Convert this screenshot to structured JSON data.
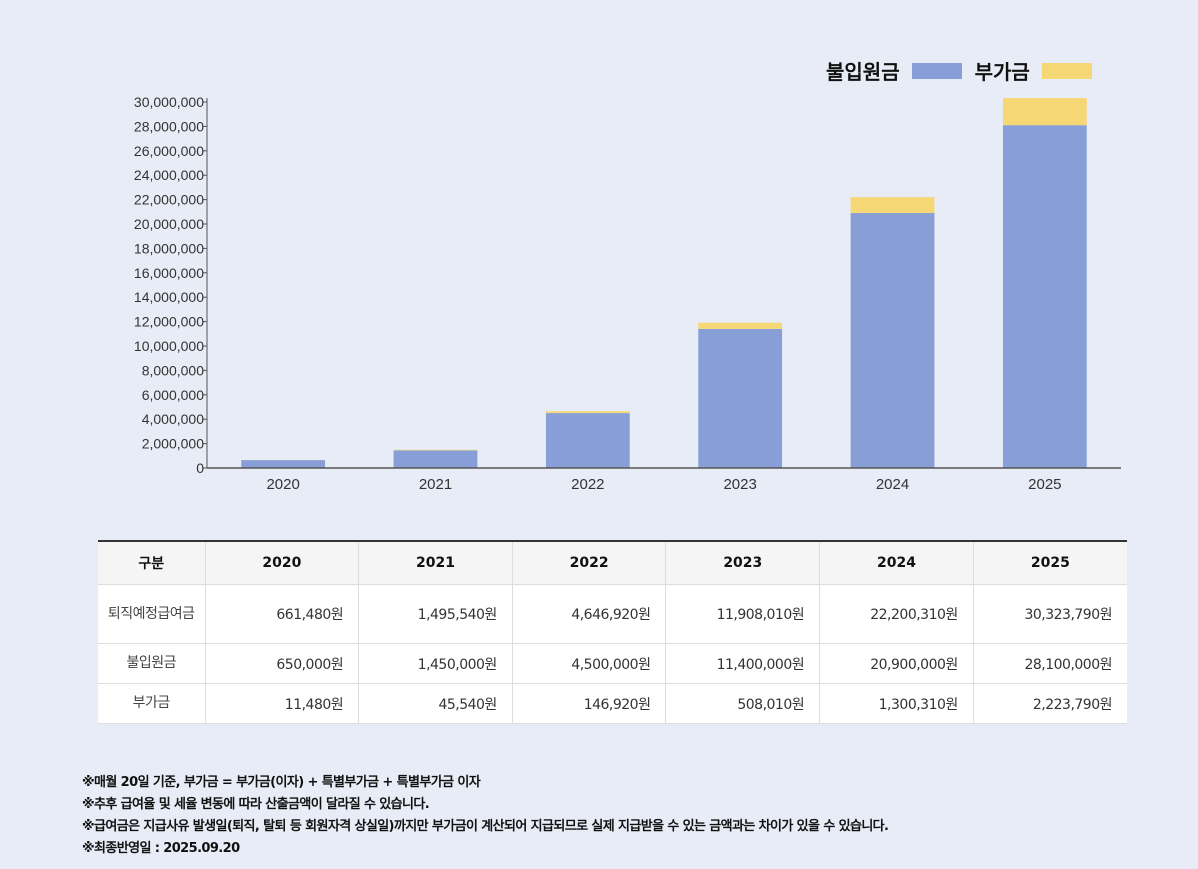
{
  "legend": {
    "series1": "불입원금",
    "series2": "부가금"
  },
  "colors": {
    "principal": "#879fd6",
    "extra": "#f5d775"
  },
  "chart_data": {
    "type": "bar",
    "stacked": true,
    "categories": [
      "2020",
      "2021",
      "2022",
      "2023",
      "2024",
      "2025"
    ],
    "series": [
      {
        "name": "불입원금",
        "values": [
          650000,
          1450000,
          4500000,
          11400000,
          20900000,
          28100000
        ]
      },
      {
        "name": "부가금",
        "values": [
          11480,
          45540,
          146920,
          508010,
          1300310,
          2223790
        ]
      }
    ],
    "ylim": [
      0,
      30000000
    ],
    "yticks": [
      0,
      2000000,
      4000000,
      6000000,
      8000000,
      10000000,
      12000000,
      14000000,
      16000000,
      18000000,
      20000000,
      22000000,
      24000000,
      26000000,
      28000000,
      30000000
    ],
    "ytick_labels": [
      "0",
      "2,000,000",
      "4,000,000",
      "6,000,000",
      "8,000,000",
      "10,000,000",
      "12,000,000",
      "14,000,000",
      "16,000,000",
      "18,000,000",
      "20,000,000",
      "22,000,000",
      "24,000,000",
      "26,000,000",
      "28,000,000",
      "30,000,000"
    ],
    "legend_position": "top-right",
    "grid": false
  },
  "table": {
    "headers": [
      "구분",
      "2020",
      "2021",
      "2022",
      "2023",
      "2024",
      "2025"
    ],
    "rows": [
      {
        "label": "퇴직예정급여금",
        "values": [
          "661,480원",
          "1,495,540원",
          "4,646,920원",
          "11,908,010원",
          "22,200,310원",
          "30,323,790원"
        ]
      },
      {
        "label": "불입원금",
        "values": [
          "650,000원",
          "1,450,000원",
          "4,500,000원",
          "11,400,000원",
          "20,900,000원",
          "28,100,000원"
        ]
      },
      {
        "label": "부가금",
        "values": [
          "11,480원",
          "45,540원",
          "146,920원",
          "508,010원",
          "1,300,310원",
          "2,223,790원"
        ]
      }
    ]
  },
  "notes": [
    "※매월 20일 기준, 부가금 = 부가금(이자) + 특별부가금 + 특별부가금 이자",
    "※추후 급여율 및 세율 변동에 따라 산출금액이 달라질 수 있습니다.",
    "※급여금은 지급사유 발생일(퇴직, 탈퇴 등 회원자격 상실일)까지만 부가금이 계산되어 지급되므로 실제 지급받을 수 있는 금액과는 차이가 있을 수 있습니다.",
    "※최종반영일 : 2025.09.20"
  ]
}
